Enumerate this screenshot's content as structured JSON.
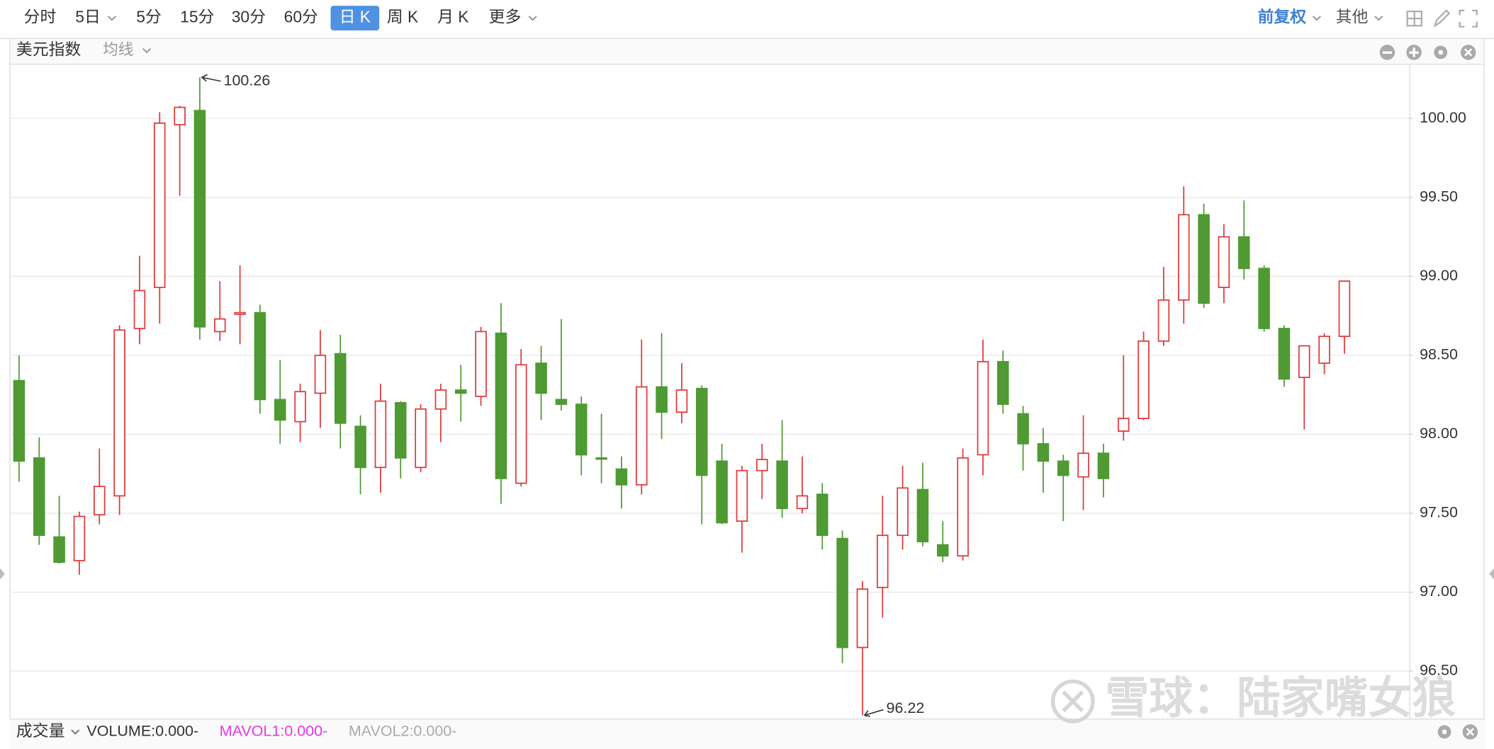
{
  "ui": {
    "periods": [
      {
        "label": "分时"
      },
      {
        "label": "5日",
        "dropdown": true
      },
      {
        "label": "5分"
      },
      {
        "label": "15分"
      },
      {
        "label": "30分"
      },
      {
        "label": "60分"
      },
      {
        "label": "日 K",
        "active": true
      },
      {
        "label": "周 K"
      },
      {
        "label": "月 K"
      },
      {
        "label": "更多",
        "dropdown": true
      }
    ],
    "right_menu": [
      {
        "label": "前复权",
        "color": "#3d7fd6"
      },
      {
        "label": "其他",
        "color": "#555555"
      }
    ],
    "instrument": "美元指数",
    "indicator": "均线",
    "volume_title": "成交量",
    "volume_items": [
      {
        "text": "VOLUME:0.000-",
        "color": "#333333"
      },
      {
        "text": "MAVOL1:0.000-",
        "color": "#e33be3"
      },
      {
        "text": "MAVOL2:0.000-",
        "color": "#aaaaaa"
      }
    ],
    "watermark": "雪球：陆家嘴女狼"
  },
  "chart_data": {
    "type": "candlestick",
    "open": [
      98.34,
      97.85,
      97.35,
      97.2,
      97.49,
      97.61,
      98.67,
      98.93,
      99.96,
      100.05,
      98.65,
      98.76,
      98.77,
      98.22,
      98.08,
      98.26,
      98.51,
      98.05,
      97.79,
      98.2,
      97.79,
      98.16,
      98.28,
      98.24,
      98.64,
      97.69,
      98.45,
      98.22,
      98.19,
      97.85,
      97.78,
      97.68,
      98.3,
      98.14,
      98.29,
      97.83,
      97.45,
      97.77,
      97.83,
      97.53,
      97.62,
      97.34,
      96.65,
      97.03,
      97.36,
      97.65,
      97.3,
      97.23,
      97.87,
      98.46,
      98.13,
      97.94,
      97.83,
      97.73,
      97.88,
      98.02,
      98.1,
      98.59,
      98.85,
      99.39,
      98.93,
      99.25,
      99.05,
      98.67,
      98.36,
      98.45,
      98.62
    ],
    "high": [
      98.5,
      97.98,
      97.61,
      97.51,
      97.91,
      98.69,
      99.13,
      100.04,
      100.08,
      100.26,
      98.97,
      99.07,
      98.82,
      98.47,
      98.32,
      98.66,
      98.63,
      98.12,
      98.32,
      98.21,
      98.19,
      98.32,
      98.44,
      98.68,
      98.83,
      98.54,
      98.56,
      98.73,
      98.24,
      98.13,
      97.86,
      98.6,
      98.64,
      98.45,
      98.31,
      97.94,
      97.8,
      97.94,
      98.09,
      97.86,
      97.69,
      97.39,
      97.07,
      97.61,
      97.8,
      97.82,
      97.45,
      97.91,
      98.6,
      98.53,
      98.18,
      98.04,
      97.87,
      98.12,
      97.94,
      98.5,
      98.65,
      99.06,
      99.57,
      99.46,
      99.33,
      99.48,
      99.07,
      98.69,
      98.56,
      98.64,
      98.97
    ],
    "low": [
      97.7,
      97.3,
      97.18,
      97.11,
      97.43,
      97.49,
      98.57,
      98.7,
      99.51,
      98.6,
      98.59,
      98.57,
      98.13,
      97.94,
      97.95,
      98.04,
      97.91,
      97.62,
      97.63,
      97.72,
      97.76,
      97.95,
      98.08,
      98.18,
      97.56,
      97.67,
      98.09,
      98.15,
      97.74,
      97.69,
      97.53,
      97.62,
      97.97,
      98.07,
      97.43,
      97.43,
      97.25,
      97.59,
      97.47,
      97.5,
      97.27,
      96.55,
      96.22,
      96.84,
      97.27,
      97.29,
      97.19,
      97.2,
      97.74,
      98.13,
      97.77,
      97.63,
      97.45,
      97.52,
      97.6,
      97.96,
      98.09,
      98.56,
      98.7,
      98.8,
      98.83,
      98.98,
      98.65,
      98.3,
      98.03,
      98.38,
      98.51
    ],
    "close": [
      97.83,
      97.36,
      97.19,
      97.48,
      97.67,
      98.66,
      98.91,
      99.97,
      100.07,
      98.68,
      98.73,
      98.77,
      98.22,
      98.09,
      98.27,
      98.5,
      98.07,
      97.79,
      98.21,
      97.85,
      98.16,
      98.28,
      98.26,
      98.65,
      97.72,
      98.44,
      98.26,
      98.19,
      97.87,
      97.85,
      97.68,
      98.3,
      98.14,
      98.28,
      97.74,
      97.44,
      97.77,
      97.84,
      97.53,
      97.61,
      97.36,
      96.65,
      97.02,
      97.36,
      97.66,
      97.32,
      97.23,
      97.85,
      98.46,
      98.19,
      97.94,
      97.83,
      97.74,
      97.88,
      97.72,
      98.1,
      98.59,
      98.85,
      99.39,
      98.83,
      99.25,
      99.05,
      98.67,
      98.35,
      98.56,
      98.62,
      98.97
    ],
    "up_color": "#e0393a",
    "down_color": "#4f9a33",
    "ylim": [
      96.2,
      100.34
    ],
    "yticks": [
      {
        "value": 96.5,
        "label": "96.50"
      },
      {
        "value": 97,
        "label": "97.00"
      },
      {
        "value": 97.5,
        "label": "97.50"
      },
      {
        "value": 98,
        "label": "98.00"
      },
      {
        "value": 98.5,
        "label": "98.50"
      },
      {
        "value": 99,
        "label": "99.00"
      },
      {
        "value": 99.5,
        "label": "99.50"
      },
      {
        "value": 100,
        "label": "100.00"
      }
    ],
    "grid": true
  }
}
